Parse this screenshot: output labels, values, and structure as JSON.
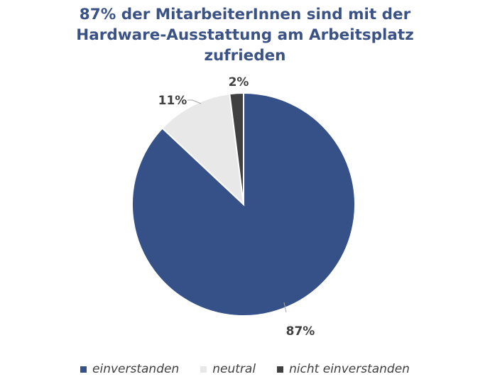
{
  "chart_data": {
    "type": "pie",
    "title_lines": [
      "87% der MitarbeiterInnen sind mit der",
      "Hardware-Ausstattung am Arbeitsplatz",
      "zufrieden"
    ],
    "categories": [
      "einverstanden",
      "neutral",
      "nicht einverstanden"
    ],
    "values": [
      87,
      11,
      2
    ],
    "data_labels": [
      "87%",
      "11%",
      "2%"
    ],
    "colors": [
      "#355188",
      "#e8e8e8",
      "#404040"
    ],
    "legend_position": "bottom"
  }
}
